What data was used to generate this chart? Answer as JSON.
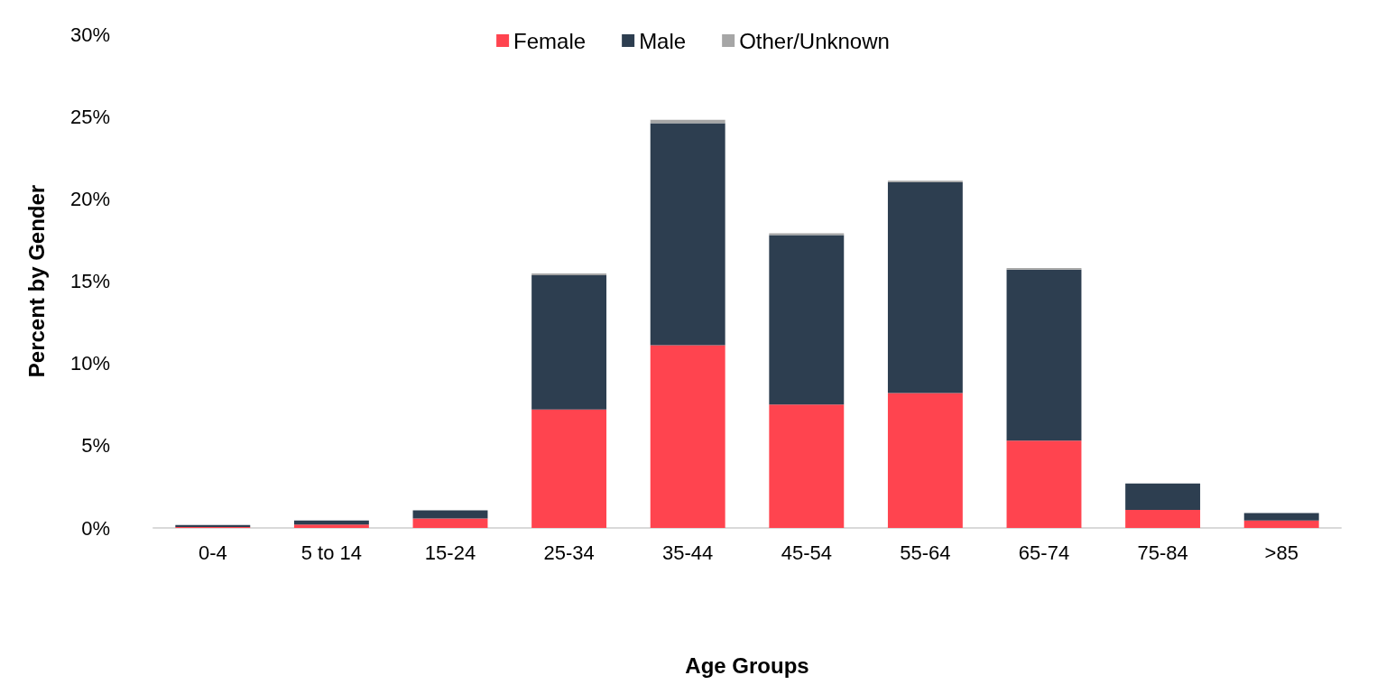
{
  "chart_data": {
    "type": "bar",
    "stacked": true,
    "xlabel": "Age Groups",
    "ylabel": "Percent by Gender",
    "categories": [
      "0-4",
      "5 to 14",
      "15-24",
      "25-34",
      "35-44",
      "45-54",
      "55-64",
      "65-74",
      "75-84",
      ">85"
    ],
    "series": [
      {
        "name": "Female",
        "color": "#ff444f",
        "values": [
          0.05,
          0.2,
          0.57,
          7.2,
          11.1,
          7.5,
          8.2,
          5.3,
          1.1,
          0.45
        ]
      },
      {
        "name": "Male",
        "color": "#2d3e50",
        "values": [
          0.13,
          0.25,
          0.5,
          8.15,
          13.5,
          10.3,
          12.8,
          10.4,
          1.6,
          0.45
        ]
      },
      {
        "name": "Other/Unknown",
        "color": "#a6a6a6",
        "values": [
          null,
          null,
          null,
          0.12,
          0.2,
          0.1,
          0.1,
          0.1,
          null,
          null
        ]
      }
    ],
    "ylim": [
      0,
      30
    ],
    "yticks": [
      {
        "value": 0,
        "label": "0%"
      },
      {
        "value": 5,
        "label": "5%"
      },
      {
        "value": 10,
        "label": "10%"
      },
      {
        "value": 15,
        "label": "15%"
      },
      {
        "value": 20,
        "label": "20%"
      },
      {
        "value": 25,
        "label": "25%"
      },
      {
        "value": 30,
        "label": "30%"
      }
    ],
    "grid": false,
    "legend": "top"
  }
}
